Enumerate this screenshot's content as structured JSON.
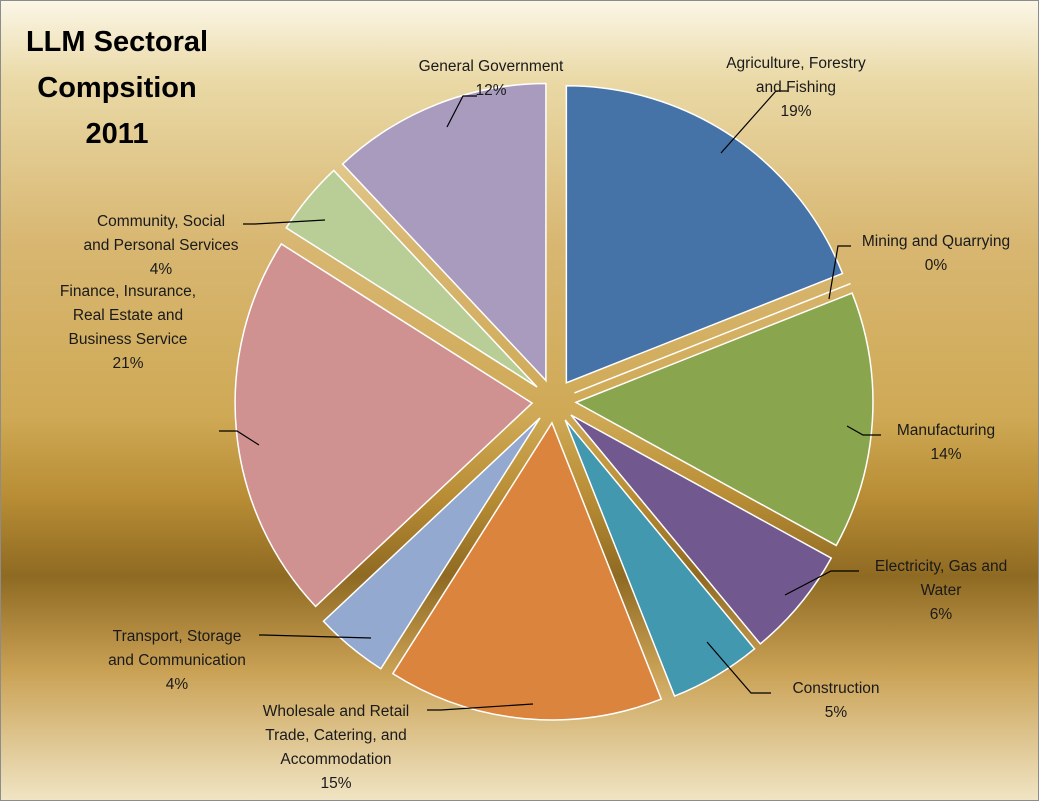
{
  "chart_data": {
    "type": "pie",
    "title_lines": [
      "LLM Sectoral",
      "Compsition",
      "2011"
    ],
    "slices": [
      {
        "label_lines": [
          "Agriculture, Forestry",
          "and Fishing"
        ],
        "value": 19,
        "percent_text": "19%",
        "color": "#4572A7"
      },
      {
        "label_lines": [
          "Mining and Quarrying"
        ],
        "value": 0,
        "percent_text": "0%",
        "color": "#AA4643"
      },
      {
        "label_lines": [
          "Manufacturing"
        ],
        "value": 14,
        "percent_text": "14%",
        "color": "#89A54E"
      },
      {
        "label_lines": [
          "Electricity, Gas and",
          "Water"
        ],
        "value": 6,
        "percent_text": "6%",
        "color": "#71588F"
      },
      {
        "label_lines": [
          "Construction"
        ],
        "value": 5,
        "percent_text": "5%",
        "color": "#4198AF"
      },
      {
        "label_lines": [
          "Wholesale and Retail",
          "Trade, Catering, and",
          "Accommodation"
        ],
        "value": 15,
        "percent_text": "15%",
        "color": "#DB843D"
      },
      {
        "label_lines": [
          "Transport, Storage",
          "and Communication"
        ],
        "value": 4,
        "percent_text": "4%",
        "color": "#93A9CF"
      },
      {
        "label_lines": [
          "Finance, Insurance,",
          "Real Estate and",
          "Business Service"
        ],
        "value": 21,
        "percent_text": "21%",
        "color": "#D09291"
      },
      {
        "label_lines": [
          "Community, Social",
          "and Personal Services"
        ],
        "value": 4,
        "percent_text": "4%",
        "color": "#B9CD96"
      },
      {
        "label_lines": [
          "General Government"
        ],
        "value": 12,
        "percent_text": "12%",
        "color": "#A99BBD"
      }
    ]
  }
}
